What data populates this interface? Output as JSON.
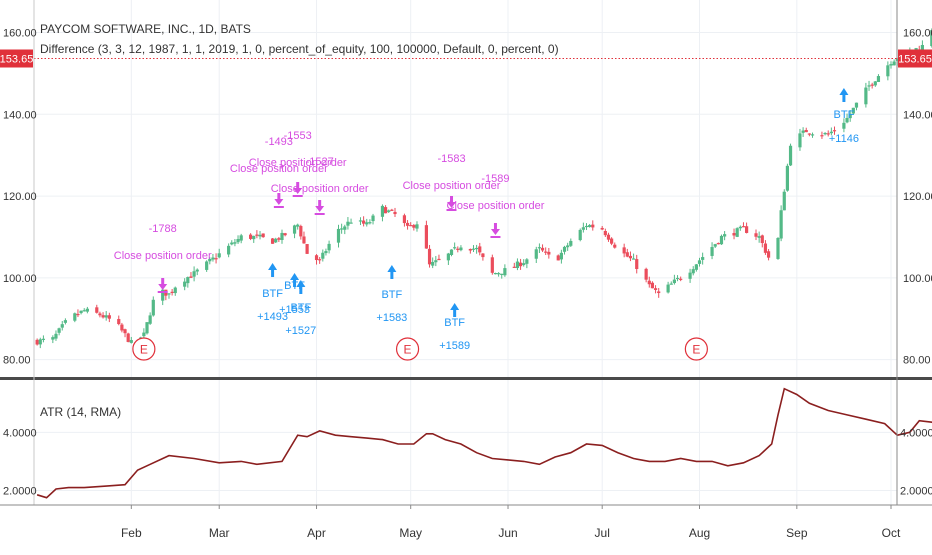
{
  "header": {
    "symbol_line": "PAYCOM SOFTWARE, INC., 1D, BATS",
    "strategy_line": "Difference (3, 3, 12, 1987, 1, 1, 2019, 1, 0, percent_of_equity, 100, 100000, Default, 0, percent, 0)",
    "last_price": "153.65"
  },
  "colors": {
    "up": "#53b987",
    "down": "#eb4d5c",
    "buy": "#2196f3",
    "close": "#d64ce0",
    "atr": "#8b1f1f",
    "price_line": "#e0303a",
    "earnings": "#e0303a"
  },
  "icons": {
    "buy_arrow": "up-arrow-icon",
    "close_arrow": "down-arrow-icon",
    "earnings": "earnings-marker-icon"
  },
  "chart_data": [
    {
      "type": "candlestick",
      "title": "PAYCOM SOFTWARE, INC., 1D, BATS",
      "ylim": [
        76,
        166
      ],
      "y_ticks": [
        "80.00",
        "100.00",
        "120.00",
        "140.00",
        "160.00"
      ],
      "x_ticks": [
        "Feb",
        "Mar",
        "Apr",
        "May",
        "Jun",
        "Jul",
        "Aug",
        "Sep",
        "Oct"
      ],
      "grid": true,
      "close_series": {
        "start": "2019-01-02",
        "points": [
          [
            0,
            84.5
          ],
          [
            5,
            85
          ],
          [
            10,
            90
          ],
          [
            15,
            92
          ],
          [
            20,
            91
          ],
          [
            25,
            89
          ],
          [
            30,
            84
          ],
          [
            34,
            86
          ],
          [
            38,
            97
          ],
          [
            42,
            96
          ],
          [
            45,
            99
          ],
          [
            50,
            101
          ],
          [
            55,
            104
          ],
          [
            60,
            107
          ],
          [
            65,
            110
          ],
          [
            70,
            110
          ],
          [
            75,
            109
          ],
          [
            80,
            111
          ],
          [
            83,
            113
          ],
          [
            86,
            106
          ],
          [
            90,
            104
          ],
          [
            95,
            111
          ],
          [
            100,
            114
          ],
          [
            105,
            113
          ],
          [
            110,
            117
          ],
          [
            115,
            115
          ],
          [
            118,
            112
          ],
          [
            122,
            114
          ],
          [
            125,
            103
          ],
          [
            130,
            105
          ],
          [
            135,
            108
          ],
          [
            140,
            107
          ],
          [
            145,
            101
          ],
          [
            150,
            102
          ],
          [
            155,
            104
          ],
          [
            160,
            107
          ],
          [
            165,
            104
          ],
          [
            170,
            109
          ],
          [
            175,
            113
          ],
          [
            180,
            112
          ],
          [
            185,
            107
          ],
          [
            190,
            104
          ],
          [
            195,
            98
          ],
          [
            198,
            96
          ],
          [
            203,
            99
          ],
          [
            208,
            102
          ],
          [
            213,
            106
          ],
          [
            218,
            110
          ],
          [
            225,
            112
          ],
          [
            230,
            110
          ],
          [
            233,
            105
          ],
          [
            235,
            103
          ],
          [
            237,
            116
          ],
          [
            240,
            133
          ],
          [
            245,
            136
          ],
          [
            252,
            135
          ],
          [
            258,
            139
          ],
          [
            265,
            147
          ],
          [
            272,
            153
          ],
          [
            276,
            155
          ],
          [
            280,
            156
          ],
          [
            283,
            157
          ],
          [
            286,
            163
          ],
          [
            289,
            160
          ],
          [
            291,
            156
          ],
          [
            293,
            154
          ],
          [
            295,
            153.65
          ]
        ]
      },
      "last_price": 153.65,
      "signals": [
        {
          "type": "close",
          "date": "2019-02-11",
          "label": "Close position order",
          "value": "-1788"
        },
        {
          "type": "close",
          "date": "2019-03-20",
          "label": "Close position order",
          "value": "-1493"
        },
        {
          "type": "close",
          "date": "2019-03-26",
          "label": "Close position order",
          "value": "-1553"
        },
        {
          "type": "close",
          "date": "2019-04-02",
          "label": "Close position order",
          "value": "-1527"
        },
        {
          "type": "close",
          "date": "2019-05-14",
          "label": "Close position order",
          "value": "-1583"
        },
        {
          "type": "close",
          "date": "2019-05-28",
          "label": "Close position order",
          "value": "-1589"
        },
        {
          "type": "buy",
          "date": "2019-03-18",
          "label": "BTF",
          "value": "+1493"
        },
        {
          "type": "buy",
          "date": "2019-03-25",
          "label": "BTF",
          "value": "+1553"
        },
        {
          "type": "buy",
          "date": "2019-03-27",
          "label": "BTF",
          "value": "+1527"
        },
        {
          "type": "buy",
          "date": "2019-04-25",
          "label": "BTF",
          "value": "+1583"
        },
        {
          "type": "buy",
          "date": "2019-05-15",
          "label": "BTF",
          "value": "+1589"
        },
        {
          "type": "buy",
          "date": "2019-09-16",
          "label": "BTF",
          "value": "+1146"
        }
      ],
      "earnings": [
        {
          "date": "2019-02-05",
          "label": "E"
        },
        {
          "date": "2019-04-30",
          "label": "E"
        },
        {
          "date": "2019-07-31",
          "label": "E"
        }
      ]
    },
    {
      "type": "line",
      "title": "ATR (14, RMA)",
      "ylim": [
        1.5,
        5.8
      ],
      "y_ticks": [
        "2.0000",
        "4.0000"
      ],
      "series": [
        {
          "name": "ATR (14, RMA)",
          "start": "2019-01-02",
          "points": [
            [
              0,
              1.85
            ],
            [
              3,
              1.75
            ],
            [
              6,
              2.05
            ],
            [
              10,
              2.1
            ],
            [
              15,
              2.1
            ],
            [
              22,
              2.15
            ],
            [
              28,
              2.2
            ],
            [
              32,
              2.7
            ],
            [
              36,
              2.9
            ],
            [
              42,
              3.2
            ],
            [
              50,
              3.1
            ],
            [
              58,
              2.95
            ],
            [
              65,
              3.0
            ],
            [
              70,
              2.9
            ],
            [
              78,
              3.0
            ],
            [
              83,
              3.9
            ],
            [
              86,
              3.85
            ],
            [
              90,
              4.05
            ],
            [
              95,
              3.9
            ],
            [
              100,
              3.85
            ],
            [
              105,
              3.8
            ],
            [
              110,
              3.75
            ],
            [
              115,
              3.6
            ],
            [
              120,
              3.6
            ],
            [
              124,
              3.95
            ],
            [
              126,
              3.95
            ],
            [
              130,
              3.75
            ],
            [
              135,
              3.6
            ],
            [
              140,
              3.3
            ],
            [
              145,
              3.1
            ],
            [
              150,
              3.05
            ],
            [
              155,
              3.0
            ],
            [
              160,
              2.9
            ],
            [
              165,
              3.15
            ],
            [
              170,
              3.3
            ],
            [
              175,
              3.6
            ],
            [
              180,
              3.55
            ],
            [
              185,
              3.3
            ],
            [
              190,
              3.1
            ],
            [
              195,
              3.0
            ],
            [
              200,
              3.0
            ],
            [
              205,
              3.1
            ],
            [
              210,
              3.0
            ],
            [
              215,
              3.0
            ],
            [
              220,
              2.85
            ],
            [
              225,
              2.95
            ],
            [
              230,
              3.2
            ],
            [
              234,
              3.6
            ],
            [
              236,
              4.6
            ],
            [
              238,
              5.5
            ],
            [
              242,
              5.3
            ],
            [
              246,
              5.0
            ],
            [
              252,
              4.75
            ],
            [
              258,
              4.6
            ],
            [
              264,
              4.45
            ],
            [
              270,
              4.3
            ],
            [
              274,
              3.9
            ],
            [
              278,
              4.0
            ],
            [
              281,
              4.4
            ],
            [
              285,
              4.35
            ],
            [
              290,
              4.2
            ],
            [
              293,
              4.25
            ],
            [
              295,
              4.15
            ]
          ]
        }
      ]
    }
  ]
}
